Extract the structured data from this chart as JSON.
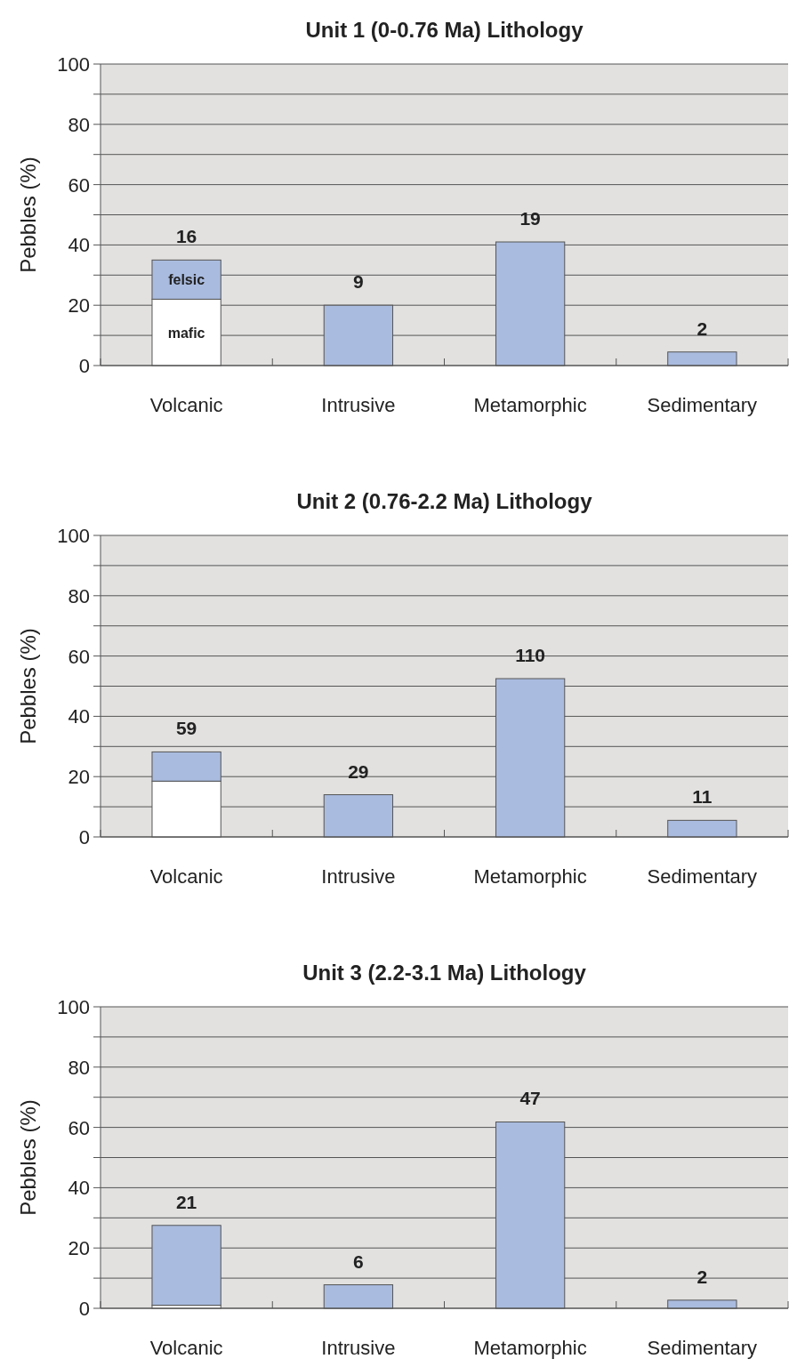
{
  "chart_data": [
    {
      "type": "bar",
      "title": "Unit 1 (0-0.76 Ma) Lithology",
      "ylabel": "Pebbles (%)",
      "categories": [
        "Volcanic",
        "Intrusive",
        "Metamorphic",
        "Sedimentary"
      ],
      "stacked": true,
      "series": [
        {
          "name": "mafic",
          "color": "#ffffff",
          "values": [
            22,
            null,
            null,
            null
          ]
        },
        {
          "name": "felsic",
          "color": "#a9bbdf",
          "values": [
            13,
            null,
            null,
            null
          ]
        },
        {
          "color": "#a9bbdf",
          "values": [
            null,
            20,
            41,
            4.5
          ]
        }
      ],
      "annotations": [
        {
          "text": "16",
          "x": "Volcanic",
          "y": 35
        },
        {
          "text": "9",
          "x": "Intrusive",
          "y": 20
        },
        {
          "text": "19",
          "x": "Metamorphic",
          "y": 41
        },
        {
          "text": "2",
          "x": "Sedimentary",
          "y": 4.5
        }
      ],
      "ylim": [
        0,
        100
      ],
      "yticks": [
        0,
        {
          "value": 10,
          "label": null
        },
        20,
        {
          "value": 30,
          "label": null
        },
        40,
        {
          "value": 50,
          "label": null
        },
        60,
        {
          "value": 70,
          "label": null
        },
        80,
        {
          "value": 90,
          "label": null
        },
        100
      ],
      "grid": "y"
    },
    {
      "type": "bar",
      "title": "Unit 2 (0.76-2.2 Ma) Lithology",
      "ylabel": "Pebbles (%)",
      "categories": [
        "Volcanic",
        "Intrusive",
        "Metamorphic",
        "Sedimentary"
      ],
      "stacked": true,
      "series": [
        {
          "color": "#ffffff",
          "values": [
            18.5,
            null,
            null,
            null
          ]
        },
        {
          "color": "#a9bbdf",
          "values": [
            9.7,
            14,
            52.5,
            5.5
          ]
        }
      ],
      "annotations": [
        {
          "text": "59",
          "x": "Volcanic",
          "y": 28.2
        },
        {
          "text": "29",
          "x": "Intrusive",
          "y": 14
        },
        {
          "text": "110",
          "x": "Metamorphic",
          "y": 52.5
        },
        {
          "text": "11",
          "x": "Sedimentary",
          "y": 5.5
        }
      ],
      "ylim": [
        0,
        100
      ],
      "yticks": [
        0,
        {
          "value": 10,
          "label": null
        },
        20,
        {
          "value": 30,
          "label": null
        },
        40,
        {
          "value": 50,
          "label": null
        },
        60,
        {
          "value": 70,
          "label": null
        },
        80,
        {
          "value": 90,
          "label": null
        },
        100
      ],
      "grid": "y"
    },
    {
      "type": "bar",
      "title": "Unit 3 (2.2-3.1 Ma) Lithology",
      "ylabel": "Pebbles (%)",
      "categories": [
        "Volcanic",
        "Intrusive",
        "Metamorphic",
        "Sedimentary"
      ],
      "stacked": true,
      "series": [
        {
          "color": "#ffffff",
          "values": [
            1,
            null,
            null,
            null
          ]
        },
        {
          "color": "#a9bbdf",
          "values": [
            26.5,
            7.8,
            61.8,
            2.7
          ]
        }
      ],
      "annotations": [
        {
          "text": "21",
          "x": "Volcanic",
          "y": 27.5
        },
        {
          "text": "6",
          "x": "Intrusive",
          "y": 7.8
        },
        {
          "text": "47",
          "x": "Metamorphic",
          "y": 61.8
        },
        {
          "text": "2",
          "x": "Sedimentary",
          "y": 2.7
        }
      ],
      "ylim": [
        0,
        100
      ],
      "yticks": [
        0,
        {
          "value": 10,
          "label": null
        },
        20,
        {
          "value": 30,
          "label": null
        },
        40,
        {
          "value": 50,
          "label": null
        },
        60,
        {
          "value": 70,
          "label": null
        },
        80,
        {
          "value": 90,
          "label": null
        },
        100
      ],
      "grid": "y"
    }
  ]
}
